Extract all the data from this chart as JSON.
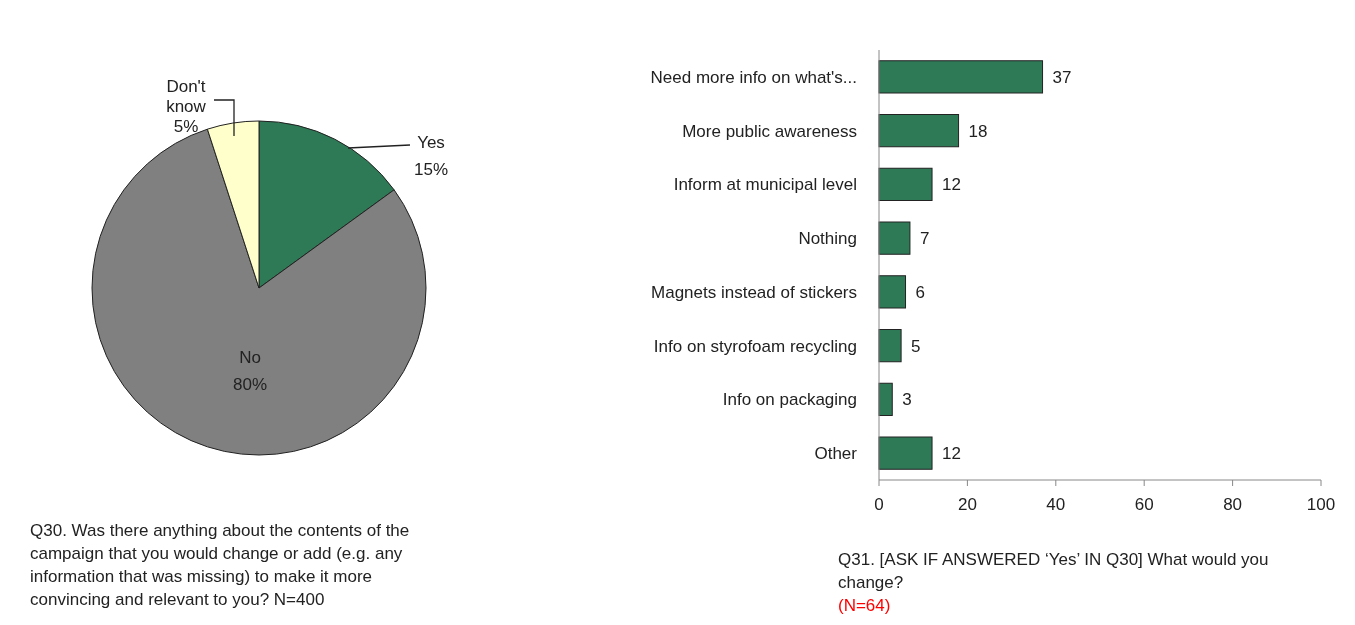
{
  "chart_data": [
    {
      "type": "pie",
      "categories": [
        "Yes",
        "No",
        "Don't know"
      ],
      "values": [
        15,
        80,
        5
      ],
      "value_labels": [
        "15%",
        "80%",
        "5%"
      ],
      "colors": [
        "#2e7a57",
        "#808080",
        "#ffffcc"
      ],
      "annotations": [
        "Q30. Was there anything about the contents of the campaign that you would change or add (e.g. any information that was missing) to make it more convincing and relevant to you? N=400"
      ]
    },
    {
      "type": "bar",
      "orientation": "horizontal",
      "categories": [
        "Need more info on what's...",
        "More public awareness",
        "Inform at municipal level",
        "Nothing",
        "Magnets instead of stickers",
        "Info on styrofoam recycling",
        "Info on packaging",
        "Other"
      ],
      "values": [
        37,
        18,
        12,
        7,
        6,
        5,
        3,
        12
      ],
      "color": "#2e7a57",
      "xlim": [
        0,
        100
      ],
      "xticks": [
        0,
        20,
        40,
        60,
        80,
        100
      ],
      "data_labels": true,
      "annotations": [
        "Q31. [ASK IF ANSWERED ‘Yes’ IN Q30] What would you change?",
        "(N=64)"
      ]
    }
  ]
}
